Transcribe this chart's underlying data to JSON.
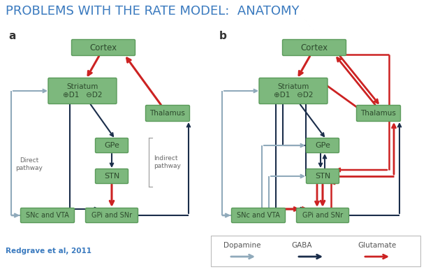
{
  "title": "PROBLEMS WITH THE RATE MODEL:  ANATOMY",
  "title_color": "#3a7abf",
  "title_fontsize": 13,
  "bg_color": "#ffffff",
  "box_fill": "#7db87d",
  "box_edge": "#5a9a5a",
  "dark_arrow": "#1a2d4a",
  "red_arrow": "#cc2222",
  "gray_arrow": "#90aabb",
  "ref_text": "Redgrave et al, 2011",
  "ref_color": "#3a7abf",
  "legend_items": [
    "Dopamine",
    "GABA",
    "Glutamate"
  ],
  "legend_colors": [
    "#90aabb",
    "#1a2d4a",
    "#cc2222"
  ]
}
